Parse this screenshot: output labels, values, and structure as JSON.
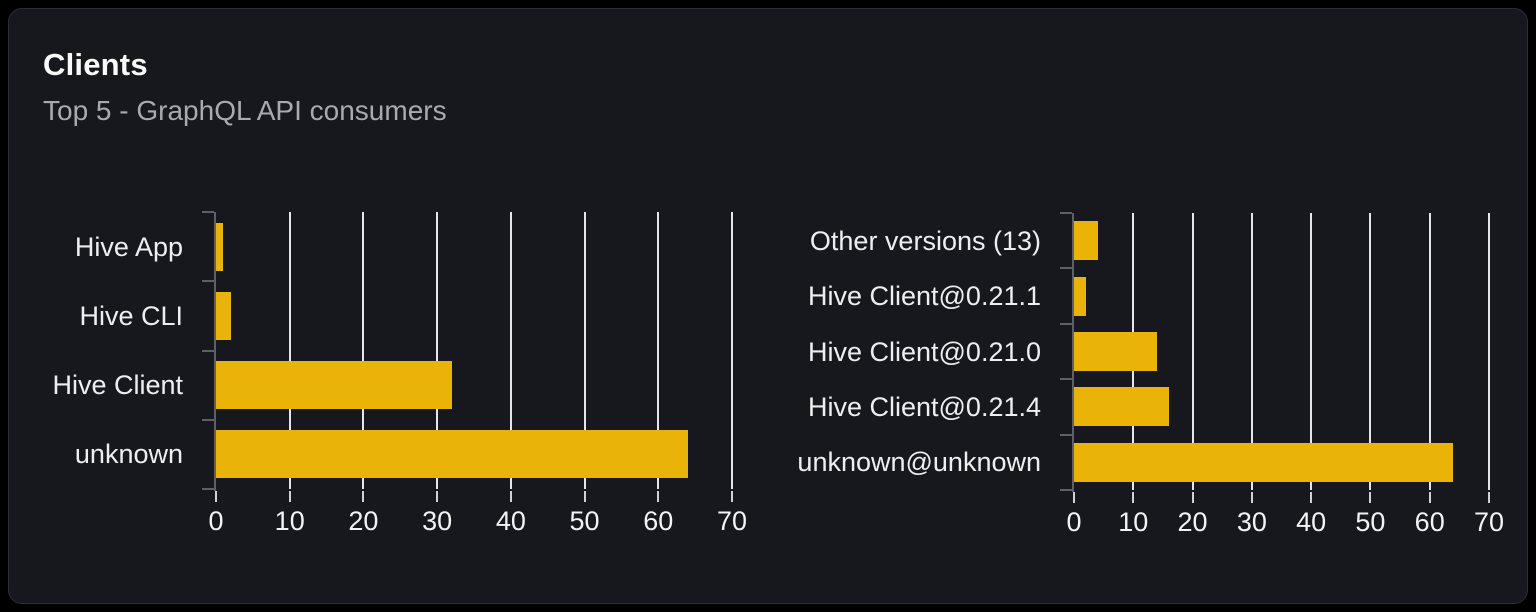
{
  "card": {
    "title": "Clients",
    "subtitle": "Top 5 - GraphQL API consumers"
  },
  "colors": {
    "page_bg": "#000000",
    "card_bg": "#16181d",
    "card_border": "#2b2e35",
    "bar": "#eab308",
    "grid": "#e4e6ec",
    "axis": "#5d6067",
    "xtick": "#cfd3d9",
    "cat_text": "#eceef0",
    "ticklabel_text": "#f2f3f5",
    "title_text": "#fafafa",
    "subtitle_text": "#a6aab1"
  },
  "chart_data": [
    {
      "type": "bar",
      "name": "clients-chart",
      "orientation": "horizontal",
      "title": "",
      "categories": [
        "Hive App",
        "Hive CLI",
        "Hive Client",
        "unknown"
      ],
      "values": [
        1,
        2,
        32,
        64
      ],
      "xlabel": "",
      "ylabel": "",
      "xlim": [
        0,
        70
      ],
      "xticks": [
        0,
        10,
        20,
        30,
        40,
        50,
        60,
        70
      ],
      "grid": true,
      "legend": false
    },
    {
      "type": "bar",
      "name": "client-versions-chart",
      "orientation": "horizontal",
      "title": "",
      "categories": [
        "Other versions (13)",
        "Hive Client@0.21.1",
        "Hive Client@0.21.0",
        "Hive Client@0.21.4",
        "unknown@unknown"
      ],
      "values": [
        4,
        2,
        14,
        16,
        64
      ],
      "xlabel": "",
      "ylabel": "",
      "xlim": [
        0,
        70
      ],
      "xticks": [
        0,
        10,
        20,
        30,
        40,
        50,
        60,
        70
      ],
      "grid": true,
      "legend": false
    }
  ]
}
